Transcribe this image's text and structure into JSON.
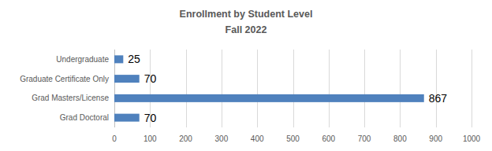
{
  "chart_data": {
    "type": "bar",
    "orientation": "horizontal",
    "title": "Enrollment by Student Level",
    "subtitle": "Fall 2022",
    "categories": [
      "Undergraduate",
      "Graduate Certificate Only",
      "Grad Masters/License",
      "Grad Doctoral"
    ],
    "values": [
      25,
      70,
      867,
      70
    ],
    "color": "#4f81bd",
    "xlim": [
      0,
      1000
    ],
    "xticks": [
      0,
      100,
      200,
      300,
      400,
      500,
      600,
      700,
      800,
      900,
      1000
    ],
    "grid": true,
    "data_labels": true
  }
}
